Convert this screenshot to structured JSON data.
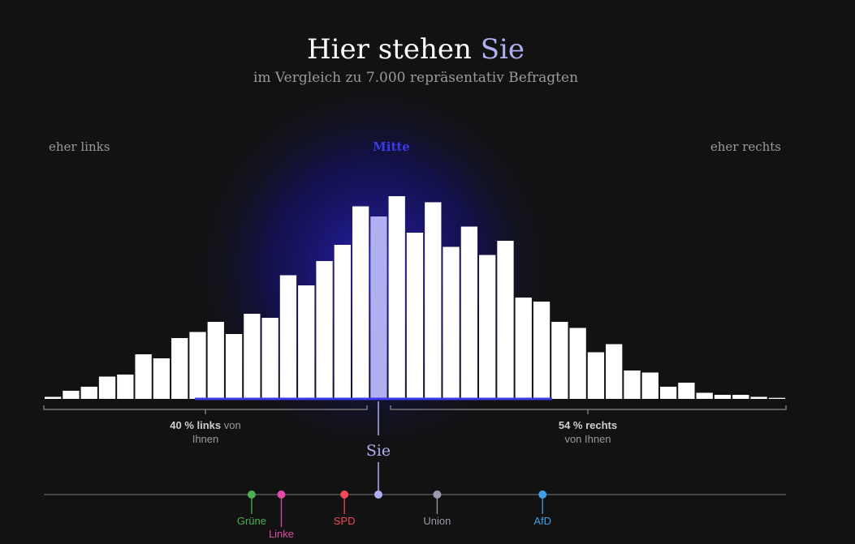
{
  "header": {
    "title_prefix": "Hier stehen ",
    "title_highlight": "Sie",
    "subtitle": "im Vergleich zu 7.000 repräsentativ Befragten"
  },
  "axis_labels": {
    "left": "eher links",
    "center": "Mitte",
    "right": "eher rechts"
  },
  "summary": {
    "left_bold": "40 % links",
    "left_rest": " von",
    "left_line2": "Ihnen",
    "right_bold": "54 % rechts",
    "right_line2": "von Ihnen"
  },
  "user_marker_label": "Sie",
  "colors": {
    "background": "#121212",
    "bar": "#ffffff",
    "user_bar": "#b0aff0",
    "accent": "#3a3ae6",
    "sie": "#b0aff0",
    "muted_text": "#9a9a9a"
  },
  "chart_data": {
    "type": "bar",
    "title": "Hier stehen Sie",
    "subtitle": "im Vergleich zu 7.000 repräsentativ Befragten",
    "values": [
      1,
      4,
      6,
      11,
      12,
      22,
      20,
      30,
      33,
      38,
      32,
      42,
      40,
      61,
      56,
      68,
      76,
      95,
      90,
      100,
      82,
      97,
      75,
      85,
      71,
      78,
      50,
      48,
      38,
      35,
      23,
      27,
      14,
      13,
      6,
      8,
      3,
      2,
      2,
      1,
      0.5
    ],
    "user_bin_index": 18,
    "parties": [
      {
        "name": "Grüne",
        "position": 0.28,
        "color": "#4caf50",
        "label_row": 1
      },
      {
        "name": "Linke",
        "position": 0.32,
        "color": "#e04aa8",
        "label_row": 2
      },
      {
        "name": "SPD",
        "position": 0.405,
        "color": "#ef4a55",
        "label_row": 1
      },
      {
        "name": "Union",
        "position": 0.53,
        "color": "#9a9aaa",
        "label_row": 1
      },
      {
        "name": "AfD",
        "position": 0.672,
        "color": "#3fa0e8",
        "label_row": 1
      }
    ],
    "user_position": 0.45
  }
}
